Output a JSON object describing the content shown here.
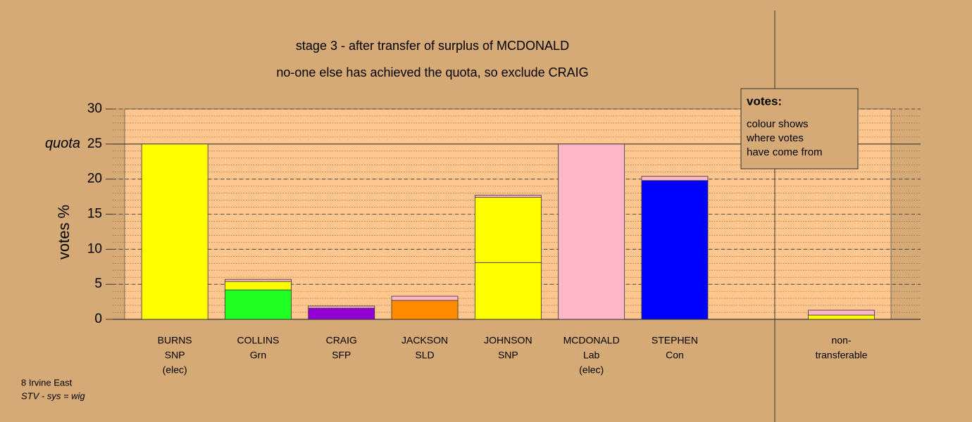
{
  "chart_data": {
    "type": "stacked-bar",
    "title": "stage 3 - after transfer of surplus of MCDONALD",
    "subtitle": "no-one else has achieved the quota, so exclude CRAIG",
    "y_label": "votes %",
    "categories": [
      [
        "BURNS",
        "SNP",
        "(elec)"
      ],
      [
        "COLLINS",
        "Grn"
      ],
      [
        "CRAIG",
        "SFP"
      ],
      [
        "JACKSON",
        "SLD"
      ],
      [
        "JOHNSON",
        "SNP"
      ],
      [
        "MCDONALD",
        "Lab",
        "(elec)"
      ],
      [
        "STEPHEN",
        "Con"
      ],
      null,
      [
        "non-",
        "transferable"
      ]
    ],
    "series": [
      {
        "values": [
          25,
          4.2,
          1.6,
          2.7,
          8.1,
          25,
          19.8,
          null,
          0.6
        ],
        "colors": [
          "#ffff00",
          "#22ff22",
          "#9400d3",
          "#ff8c00",
          "#ffff00",
          "#ffb6c8",
          "#0000ff",
          null,
          "#ffff00"
        ]
      },
      {
        "values": [
          null,
          1.2,
          0.3,
          0.6,
          9.3,
          null,
          0.6,
          null,
          0.7
        ],
        "colors": [
          null,
          "#ffff00",
          "#ffb6c8",
          "#ffb6c8",
          "#ffff00",
          null,
          "#ffb6c8",
          null,
          "#ffb6c8"
        ]
      },
      {
        "values": [
          null,
          0.3,
          null,
          null,
          0.3,
          null,
          null,
          null,
          null
        ],
        "colors": [
          null,
          "#ffb6c8",
          null,
          null,
          "#ffb6c8",
          null,
          null,
          null,
          null
        ]
      }
    ],
    "ylim": [
      0,
      30
    ],
    "yticks": [
      0,
      5,
      10,
      15,
      20,
      25,
      30
    ],
    "quota": 25,
    "quota_label": "quota",
    "minor_grid_step": 1,
    "legend": {
      "title": "votes:",
      "lines": [
        "colour shows",
        "where votes",
        "have come from"
      ]
    },
    "footer": [
      "8 Irvine East",
      "STV - sys = wig"
    ]
  }
}
